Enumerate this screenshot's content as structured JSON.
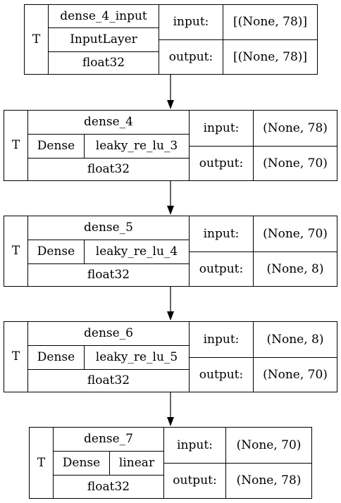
{
  "diagram": {
    "layers": [
      {
        "dtype_flag": "T",
        "name": "dense_4_input",
        "class_name": "InputLayer",
        "activation": "",
        "dtype": "float32",
        "input_label": "input:",
        "output_label": "output:",
        "input_shape": "[(None, 78)]",
        "output_shape": "[(None, 78)]"
      },
      {
        "dtype_flag": "T",
        "name": "dense_4",
        "class_name": "Dense",
        "activation": "leaky_re_lu_3",
        "dtype": "float32",
        "input_label": "input:",
        "output_label": "output:",
        "input_shape": "(None, 78)",
        "output_shape": "(None, 70)"
      },
      {
        "dtype_flag": "T",
        "name": "dense_5",
        "class_name": "Dense",
        "activation": "leaky_re_lu_4",
        "dtype": "float32",
        "input_label": "input:",
        "output_label": "output:",
        "input_shape": "(None, 70)",
        "output_shape": "(None, 8)"
      },
      {
        "dtype_flag": "T",
        "name": "dense_6",
        "class_name": "Dense",
        "activation": "leaky_re_lu_5",
        "dtype": "float32",
        "input_label": "input:",
        "output_label": "output:",
        "input_shape": "(None, 8)",
        "output_shape": "(None, 70)"
      },
      {
        "dtype_flag": "T",
        "name": "dense_7",
        "class_name": "Dense",
        "activation": "linear",
        "dtype": "float32",
        "input_label": "input:",
        "output_label": "output:",
        "input_shape": "(None, 70)",
        "output_shape": "(None, 78)"
      }
    ]
  }
}
